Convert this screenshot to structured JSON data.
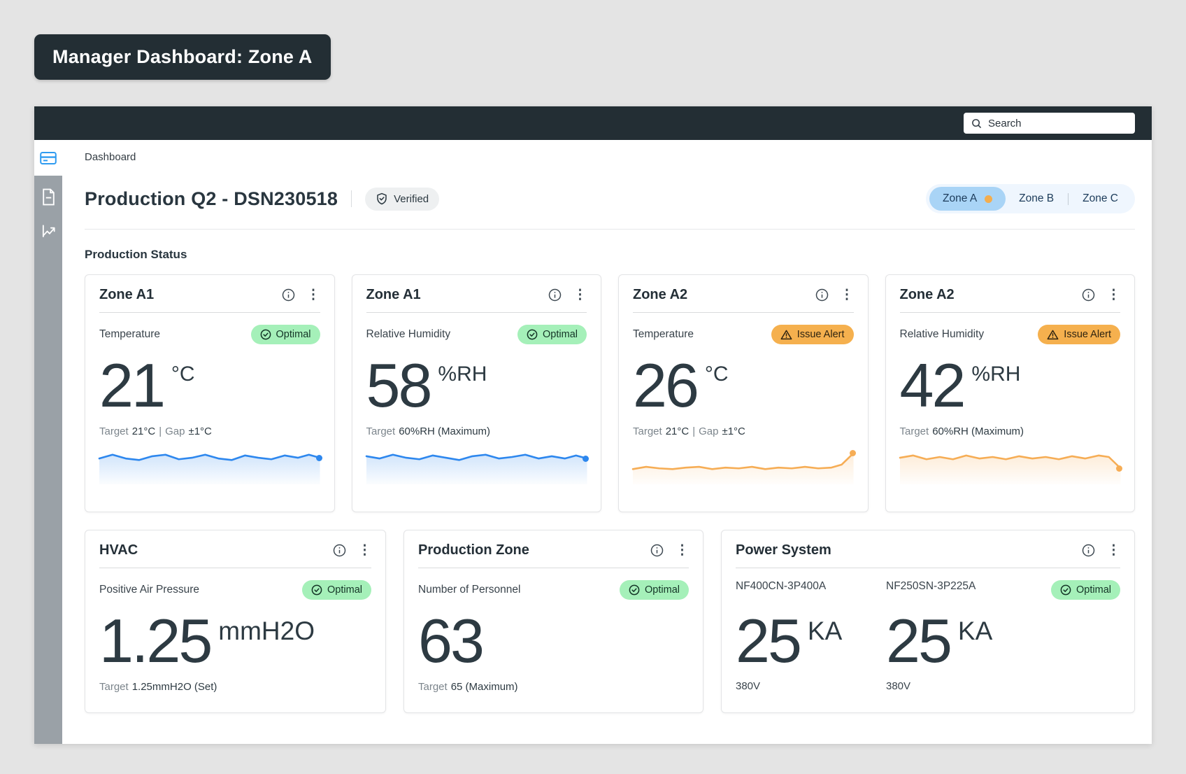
{
  "title_badge": {
    "label": "Manager Dashboard: Zone A"
  },
  "topbar": {
    "search": {
      "placeholder": "Search",
      "icon": "search-icon"
    }
  },
  "sidebar": {
    "dashboard_icon": "dashboard-card-icon",
    "items": [
      {
        "icon": "document-icon"
      },
      {
        "icon": "line-chart-icon"
      }
    ]
  },
  "breadcrumb": {
    "label": "Dashboard"
  },
  "page_header": {
    "title": "Production Q2 - DSN230518",
    "verified": {
      "label": "Verified",
      "icon": "shield-check-icon"
    },
    "zone_tabs": {
      "items": [
        {
          "label": "Zone A",
          "active": true,
          "dot_color": "#f3ad4e"
        },
        {
          "label": "Zone B",
          "active": false
        },
        {
          "label": "Zone C",
          "active": false
        }
      ]
    }
  },
  "section_title": "Production Status",
  "colors": {
    "topbar_bg": "#232e34",
    "optimal_bg": "#a5f0b9",
    "alert_bg": "#f5b04e",
    "active_tab_bg": "#a9d4f6",
    "active_tab_dot": "#f3ad4e",
    "spark_blue": "#2d87ee",
    "spark_orange": "#f6ad55",
    "sidebar_rail": "#9aa1a7",
    "sidebar_accent": "#2e9bf0"
  },
  "cards_row1": [
    {
      "title": "Zone A1",
      "metric": "Temperature",
      "status": {
        "type": "optimal",
        "label": "Optimal"
      },
      "value": "21",
      "unit": "°C",
      "target": {
        "label": "Target",
        "value": "21°C",
        "sep": "|",
        "gap_label": "Gap",
        "gap_value": "±1°C"
      },
      "spark": {
        "type": "line",
        "color": "#2d87ee",
        "points": [
          [
            0,
            14
          ],
          [
            18,
            9
          ],
          [
            36,
            14
          ],
          [
            54,
            16
          ],
          [
            72,
            11
          ],
          [
            90,
            9
          ],
          [
            108,
            15
          ],
          [
            126,
            13
          ],
          [
            144,
            9
          ],
          [
            162,
            14
          ],
          [
            180,
            16
          ],
          [
            198,
            10
          ],
          [
            216,
            13
          ],
          [
            234,
            15
          ],
          [
            252,
            10
          ],
          [
            270,
            13
          ],
          [
            285,
            9
          ],
          [
            300,
            13
          ]
        ]
      }
    },
    {
      "title": "Zone A1",
      "metric": "Relative Humidity",
      "status": {
        "type": "optimal",
        "label": "Optimal"
      },
      "value": "58",
      "unit": "%RH",
      "target": {
        "label": "Target",
        "value": "60%RH (Maximum)"
      },
      "spark": {
        "type": "line",
        "color": "#2d87ee",
        "points": [
          [
            0,
            11
          ],
          [
            18,
            14
          ],
          [
            36,
            9
          ],
          [
            54,
            13
          ],
          [
            72,
            15
          ],
          [
            90,
            10
          ],
          [
            108,
            13
          ],
          [
            126,
            16
          ],
          [
            144,
            11
          ],
          [
            162,
            9
          ],
          [
            180,
            14
          ],
          [
            198,
            12
          ],
          [
            216,
            9
          ],
          [
            234,
            14
          ],
          [
            252,
            11
          ],
          [
            270,
            14
          ],
          [
            285,
            10
          ],
          [
            300,
            14
          ]
        ]
      }
    },
    {
      "title": "Zone A2",
      "metric": "Temperature",
      "status": {
        "type": "alert",
        "label": "Issue Alert"
      },
      "value": "26",
      "unit": "°C",
      "target": {
        "label": "Target",
        "value": "21°C",
        "sep": "|",
        "gap_label": "Gap",
        "gap_value": "±1°C"
      },
      "spark": {
        "type": "line",
        "color": "#f6ad55",
        "points": [
          [
            0,
            28
          ],
          [
            18,
            25
          ],
          [
            36,
            27
          ],
          [
            54,
            28
          ],
          [
            72,
            26
          ],
          [
            90,
            25
          ],
          [
            108,
            28
          ],
          [
            126,
            26
          ],
          [
            144,
            27
          ],
          [
            162,
            25
          ],
          [
            180,
            28
          ],
          [
            198,
            26
          ],
          [
            216,
            27
          ],
          [
            234,
            25
          ],
          [
            252,
            27
          ],
          [
            270,
            26
          ],
          [
            284,
            22
          ],
          [
            300,
            7
          ]
        ]
      }
    },
    {
      "title": "Zone A2",
      "metric": "Relative Humidity",
      "status": {
        "type": "alert",
        "label": "Issue Alert"
      },
      "value": "42",
      "unit": "%RH",
      "target": {
        "label": "Target",
        "value": "60%RH (Maximum)"
      },
      "spark": {
        "type": "line",
        "color": "#f6ad55",
        "points": [
          [
            0,
            13
          ],
          [
            18,
            10
          ],
          [
            36,
            15
          ],
          [
            54,
            12
          ],
          [
            72,
            15
          ],
          [
            90,
            10
          ],
          [
            108,
            14
          ],
          [
            126,
            12
          ],
          [
            144,
            15
          ],
          [
            162,
            11
          ],
          [
            180,
            14
          ],
          [
            198,
            12
          ],
          [
            216,
            15
          ],
          [
            234,
            11
          ],
          [
            252,
            14
          ],
          [
            270,
            10
          ],
          [
            284,
            12
          ],
          [
            300,
            27
          ]
        ]
      }
    }
  ],
  "cards_row2": [
    {
      "title": "HVAC",
      "metric": "Positive Air Pressure",
      "status": {
        "type": "optimal",
        "label": "Optimal"
      },
      "value": "1.25",
      "unit": "mmH2O",
      "target": {
        "label": "Target",
        "value": "1.25mmH2O (Set)"
      }
    },
    {
      "title": "Production Zone",
      "metric": "Number of Personnel",
      "status": {
        "type": "optimal",
        "label": "Optimal"
      },
      "value": "63",
      "unit": "",
      "target": {
        "label": "Target",
        "value": "65 (Maximum)"
      }
    },
    {
      "title": "Power System",
      "status": {
        "type": "optimal",
        "label": "Optimal"
      },
      "meters": [
        {
          "model": "NF400CN-3P400A",
          "value": "25",
          "unit": "KA",
          "voltage": "380V"
        },
        {
          "model": "NF250SN-3P225A",
          "value": "25",
          "unit": "KA",
          "voltage": "380V"
        }
      ]
    }
  ]
}
